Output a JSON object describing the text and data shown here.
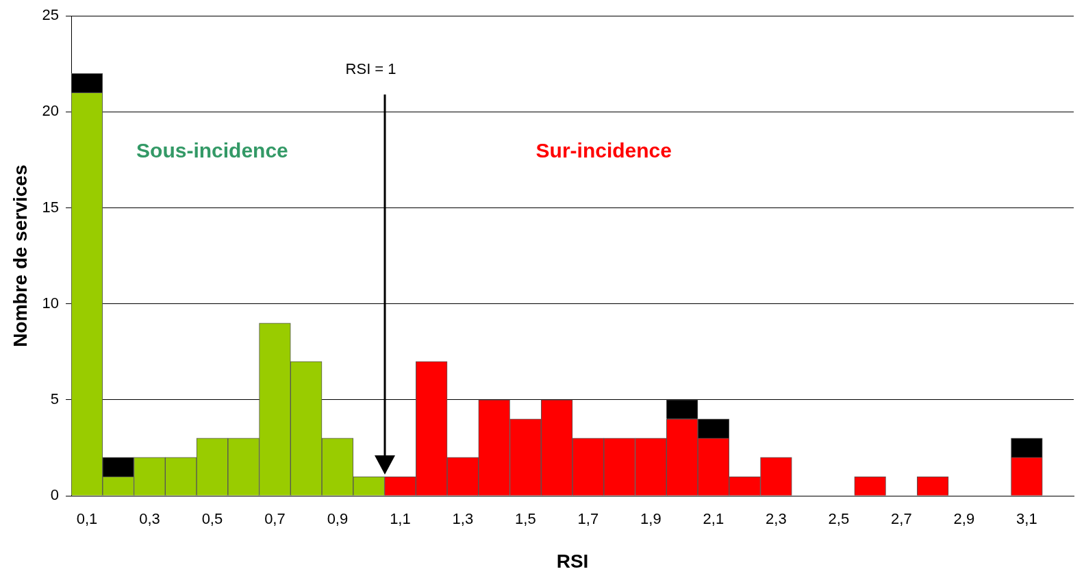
{
  "chart_data": {
    "type": "bar",
    "stacked": true,
    "xlabel": "RSI",
    "ylabel": "Nombre de services",
    "categories": [
      "0,1",
      null,
      "0,3",
      null,
      "0,5",
      null,
      "0,7",
      null,
      "0,9",
      null,
      "1,1",
      null,
      "1,3",
      null,
      "1,5",
      null,
      "1,7",
      null,
      "1,9",
      null,
      "2,1",
      null,
      "2,3",
      null,
      "2,5",
      null,
      "2,7",
      null,
      "2,9",
      null,
      "3,1",
      null
    ],
    "series": [
      {
        "colors": [
          "#99cc00",
          "#99cc00",
          "#99cc00",
          "#99cc00",
          "#99cc00",
          "#99cc00",
          "#99cc00",
          "#99cc00",
          "#99cc00",
          "#99cc00",
          "#ff0000",
          "#ff0000",
          "#ff0000",
          "#ff0000",
          "#ff0000",
          "#ff0000",
          "#ff0000",
          "#ff0000",
          "#ff0000",
          "#ff0000",
          "#ff0000",
          "#ff0000",
          "#ff0000",
          "#ff0000",
          "#ff0000",
          "#ff0000",
          "#ff0000",
          "#ff0000",
          "#ff0000",
          "#ff0000",
          "#ff0000",
          "#ff0000"
        ],
        "values": [
          21,
          1,
          2,
          2,
          3,
          3,
          9,
          7,
          3,
          1,
          1,
          7,
          2,
          5,
          4,
          5,
          3,
          3,
          3,
          4,
          3,
          1,
          2,
          0,
          0,
          1,
          0,
          1,
          0,
          0,
          2,
          0
        ]
      },
      {
        "color": "#000000",
        "values": [
          1,
          1,
          0,
          0,
          0,
          0,
          0,
          0,
          0,
          0,
          0,
          0,
          0,
          0,
          0,
          0,
          0,
          0,
          0,
          1,
          1,
          0,
          0,
          0,
          0,
          0,
          0,
          0,
          0,
          0,
          1,
          0
        ]
      }
    ],
    "ylim": [
      0,
      25
    ],
    "yticks": [
      0,
      5,
      10,
      15,
      20,
      25
    ],
    "grid": "y",
    "legend": false,
    "annotations": [
      "RSI = 1",
      "Sous-incidence",
      "Sur-incidence"
    ]
  }
}
